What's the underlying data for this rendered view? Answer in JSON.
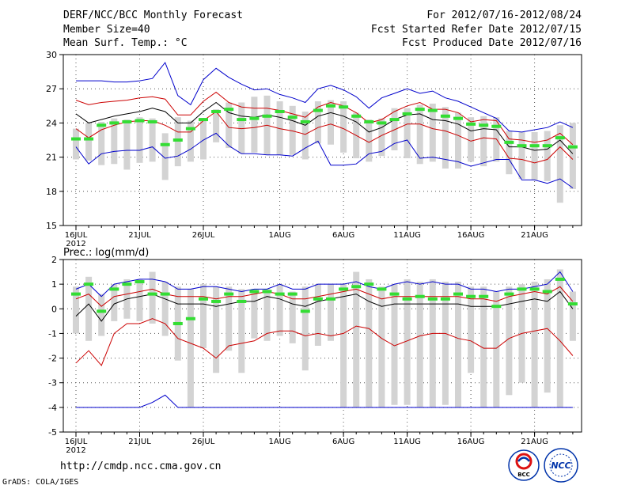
{
  "header": {
    "title": "DERF/NCC/BCC Monthly Forecast",
    "member_size": "Member Size=40",
    "variable": "Mean Surf. Temp.: °C",
    "period": "For 2012/07/16-2012/08/24",
    "fcst_started": "Fcst Started Refer Date 2012/07/15",
    "fcst_produced": "Fcst Produced Date 2012/07/16"
  },
  "footer": {
    "url": "http://cmdp.ncc.cma.gov.cn",
    "credit": "GrADS: COLA/IGES",
    "logo_bcc": "BCC",
    "logo_ncc": "NCC"
  },
  "colors": {
    "box": "#d3d3d3",
    "median": "#33dd33",
    "mean": "#000000",
    "std": "#cc0000",
    "extreme": "#0000cc",
    "grid": "#555555"
  },
  "chart_data": [
    {
      "type": "box-ensemble",
      "title": "Mean Surf. Temp.: °C",
      "ylim": [
        15,
        30
      ],
      "yticks": [
        15,
        18,
        21,
        24,
        27,
        30
      ],
      "xtick_days": [
        0,
        5,
        10,
        16,
        21,
        26,
        31,
        36
      ],
      "xtick_labels": [
        "16JUL",
        "21JUL",
        "26JUL",
        "1AUG",
        "6AUG",
        "11AUG",
        "16AUG",
        "21AUG"
      ],
      "year_label": "2012",
      "days": 40,
      "max": [
        27.7,
        27.7,
        27.7,
        27.6,
        27.6,
        27.7,
        27.9,
        29.3,
        26.4,
        25.6,
        27.8,
        28.8,
        28.0,
        27.4,
        26.9,
        27.0,
        26.5,
        26.2,
        25.8,
        27.0,
        27.3,
        26.9,
        26.3,
        25.3,
        26.2,
        26.6,
        27.0,
        26.6,
        26.8,
        26.2,
        25.9,
        25.4,
        24.9,
        24.4,
        23.3,
        23.2,
        23.4,
        23.6,
        24.1,
        23.6
      ],
      "plus_std": [
        26.0,
        25.6,
        25.8,
        25.9,
        26.0,
        26.2,
        26.3,
        26.1,
        24.7,
        24.7,
        25.9,
        26.7,
        25.8,
        25.4,
        25.3,
        25.3,
        25.1,
        24.8,
        24.5,
        25.4,
        25.8,
        25.5,
        24.9,
        24.0,
        24.3,
        25.0,
        25.5,
        25.8,
        25.2,
        25.2,
        24.9,
        24.1,
        24.3,
        24.2,
        22.6,
        22.5,
        22.3,
        22.5,
        23.1,
        22.1
      ],
      "mean": [
        24.8,
        24.0,
        24.3,
        24.6,
        24.8,
        25.0,
        25.3,
        25.0,
        24.0,
        24.0,
        25.0,
        25.8,
        24.9,
        24.6,
        24.5,
        24.7,
        24.5,
        24.2,
        23.8,
        24.6,
        24.9,
        24.6,
        24.1,
        23.2,
        23.6,
        24.3,
        24.7,
        24.8,
        24.3,
        24.2,
        23.9,
        23.3,
        23.5,
        23.4,
        21.9,
        21.9,
        21.6,
        21.7,
        22.5,
        21.3
      ],
      "minus_std": [
        23.5,
        22.7,
        23.4,
        23.8,
        24.1,
        24.2,
        24.2,
        23.8,
        23.2,
        23.2,
        24.2,
        25.0,
        23.6,
        23.5,
        23.6,
        23.8,
        23.5,
        23.3,
        23.0,
        23.6,
        23.9,
        23.5,
        22.9,
        22.3,
        22.9,
        23.4,
        23.9,
        23.9,
        23.5,
        23.3,
        22.9,
        22.4,
        22.7,
        22.6,
        20.9,
        20.8,
        20.5,
        20.8,
        21.9,
        20.8
      ],
      "min": [
        21.9,
        20.4,
        21.3,
        21.5,
        21.6,
        21.6,
        21.9,
        20.9,
        21.1,
        21.7,
        22.5,
        23.1,
        22.0,
        21.3,
        21.3,
        21.2,
        21.2,
        21.1,
        21.8,
        22.4,
        20.3,
        20.3,
        20.4,
        21.3,
        21.5,
        22.2,
        22.5,
        20.9,
        21.0,
        20.8,
        20.6,
        20.2,
        20.5,
        20.8,
        20.8,
        19.0,
        19.0,
        18.7,
        19.1,
        18.3
      ],
      "box_top": [
        23.5,
        24.0,
        24.1,
        24.4,
        24.3,
        24.5,
        24.4,
        23.1,
        24.5,
        24.2,
        24.4,
        25.2,
        25.8,
        25.8,
        26.3,
        26.4,
        25.9,
        25.5,
        25.0,
        25.9,
        26.0,
        25.9,
        24.9,
        24.3,
        24.4,
        25.3,
        25.3,
        25.6,
        25.7,
        25.4,
        24.9,
        24.5,
        24.6,
        24.5,
        23.3,
        23.2,
        23.2,
        23.3,
        23.8,
        24.0
      ],
      "box_bot": [
        20.8,
        20.7,
        20.3,
        20.4,
        19.9,
        20.5,
        20.6,
        19.0,
        20.2,
        20.6,
        20.8,
        22.3,
        21.8,
        21.3,
        21.4,
        21.2,
        21.2,
        21.2,
        20.8,
        22.2,
        22.1,
        21.4,
        20.9,
        20.6,
        21.1,
        21.6,
        20.9,
        20.4,
        20.6,
        20.0,
        20.0,
        20.6,
        20.2,
        20.6,
        19.5,
        19.1,
        19.0,
        18.9,
        17.0,
        18.2
      ],
      "median": [
        22.6,
        22.6,
        23.8,
        24.0,
        24.1,
        24.2,
        24.1,
        22.1,
        22.5,
        23.5,
        24.3,
        25.0,
        25.2,
        24.3,
        24.4,
        24.6,
        25.0,
        24.5,
        24.1,
        25.1,
        25.5,
        25.4,
        24.6,
        24.1,
        24.0,
        24.3,
        24.8,
        25.2,
        25.1,
        24.6,
        24.4,
        23.9,
        23.8,
        23.7,
        22.3,
        22.0,
        22.0,
        22.0,
        22.7,
        21.9
      ]
    },
    {
      "type": "box-ensemble",
      "title": "Prec.: log(mm/d)",
      "ylim": [
        -5,
        2
      ],
      "yticks": [
        -5,
        -4,
        -3,
        -2,
        -1,
        0,
        1,
        2
      ],
      "xtick_days": [
        0,
        5,
        10,
        16,
        21,
        26,
        31,
        36
      ],
      "xtick_labels": [
        "16JUL",
        "21JUL",
        "26JUL",
        "1AUG",
        "6AUG",
        "11AUG",
        "16AUG",
        "21AUG"
      ],
      "year_label": "2012",
      "days": 40,
      "max": [
        0.8,
        1.0,
        0.5,
        1.0,
        1.1,
        1.2,
        1.2,
        1.1,
        0.8,
        0.8,
        0.9,
        0.9,
        0.8,
        0.7,
        0.8,
        0.8,
        1.0,
        0.8,
        0.8,
        1.0,
        1.0,
        1.0,
        1.1,
        0.9,
        0.8,
        1.0,
        1.1,
        1.0,
        1.1,
        1.0,
        1.0,
        0.8,
        0.8,
        0.7,
        0.8,
        0.8,
        0.9,
        1.0,
        1.5,
        0.7
      ],
      "plus_std": [
        0.4,
        0.6,
        0.1,
        0.5,
        0.6,
        0.7,
        0.8,
        0.6,
        0.5,
        0.5,
        0.5,
        0.4,
        0.5,
        0.5,
        0.6,
        0.7,
        0.6,
        0.4,
        0.4,
        0.5,
        0.6,
        0.7,
        0.8,
        0.6,
        0.4,
        0.5,
        0.5,
        0.5,
        0.5,
        0.5,
        0.5,
        0.4,
        0.4,
        0.3,
        0.5,
        0.6,
        0.7,
        0.6,
        0.9,
        0.3
      ],
      "mean": [
        -0.3,
        0.2,
        -0.5,
        0.2,
        0.4,
        0.5,
        0.6,
        0.4,
        0.2,
        0.2,
        0.2,
        0.1,
        0.2,
        0.3,
        0.3,
        0.5,
        0.4,
        0.2,
        0.1,
        0.3,
        0.4,
        0.5,
        0.6,
        0.3,
        0.1,
        0.2,
        0.2,
        0.2,
        0.2,
        0.2,
        0.2,
        0.1,
        0.1,
        0.1,
        0.2,
        0.3,
        0.4,
        0.3,
        0.7,
        0.0
      ],
      "minus_std": [
        -2.2,
        -1.7,
        -2.3,
        -1.0,
        -0.6,
        -0.6,
        -0.4,
        -0.6,
        -1.2,
        -1.4,
        -1.6,
        -2.0,
        -1.5,
        -1.4,
        -1.3,
        -1.0,
        -0.9,
        -0.9,
        -1.1,
        -1.0,
        -1.1,
        -1.0,
        -0.7,
        -0.8,
        -1.2,
        -1.5,
        -1.3,
        -1.1,
        -1.0,
        -1.0,
        -1.2,
        -1.3,
        -1.6,
        -1.6,
        -1.2,
        -1.0,
        -0.9,
        -0.8,
        -1.3,
        -1.9
      ],
      "min": [
        -4.0,
        -4.0,
        -4.0,
        -4.0,
        -4.0,
        -4.0,
        -3.8,
        -3.5,
        -4.0,
        -4.0,
        -4.0,
        -4.0,
        -4.0,
        -4.0,
        -4.0,
        -4.0,
        -4.0,
        -4.0,
        -4.0,
        -4.0,
        -4.0,
        -4.0,
        -4.0,
        -4.0,
        -4.0,
        -4.0,
        -4.0,
        -4.0,
        -4.0,
        -4.0,
        -4.0,
        -4.0,
        -4.0,
        -4.0,
        -4.0,
        -4.0,
        -4.0,
        -4.0,
        -4.0,
        -4.0
      ],
      "box_top": [
        0.9,
        1.3,
        0.6,
        1.0,
        1.2,
        1.2,
        1.5,
        1.1,
        0.9,
        0.8,
        1.0,
        0.9,
        0.9,
        0.8,
        0.8,
        0.8,
        1.0,
        0.7,
        0.9,
        1.0,
        1.0,
        1.0,
        1.5,
        1.2,
        0.9,
        1.0,
        1.2,
        1.1,
        1.2,
        1.1,
        1.1,
        0.9,
        0.9,
        0.7,
        0.9,
        1.0,
        1.1,
        1.2,
        1.6,
        0.7
      ],
      "box_bot": [
        -1.0,
        -1.3,
        -1.1,
        -0.5,
        -0.4,
        -0.5,
        -0.6,
        -1.1,
        -2.1,
        -4.0,
        -1.6,
        -2.6,
        -1.7,
        -2.6,
        -1.2,
        -1.3,
        -1.1,
        -1.4,
        -2.5,
        -1.5,
        -1.3,
        -4.0,
        -4.0,
        -4.0,
        -4.0,
        -3.9,
        -3.9,
        -4.0,
        -4.0,
        -3.9,
        -4.0,
        -2.6,
        -4.0,
        -4.0,
        -3.5,
        -3.0,
        -4.0,
        -3.4,
        -4.0,
        -1.3
      ],
      "median": [
        0.6,
        1.0,
        -0.1,
        0.8,
        1.0,
        1.1,
        0.6,
        0.6,
        -0.6,
        -0.4,
        0.4,
        0.3,
        0.6,
        0.3,
        0.7,
        0.7,
        0.6,
        0.6,
        -0.1,
        0.4,
        0.4,
        0.8,
        0.9,
        1.0,
        0.8,
        0.6,
        0.4,
        0.5,
        0.4,
        0.4,
        0.6,
        0.5,
        0.5,
        0.1,
        0.6,
        0.8,
        0.8,
        0.7,
        1.2,
        0.2
      ]
    }
  ]
}
